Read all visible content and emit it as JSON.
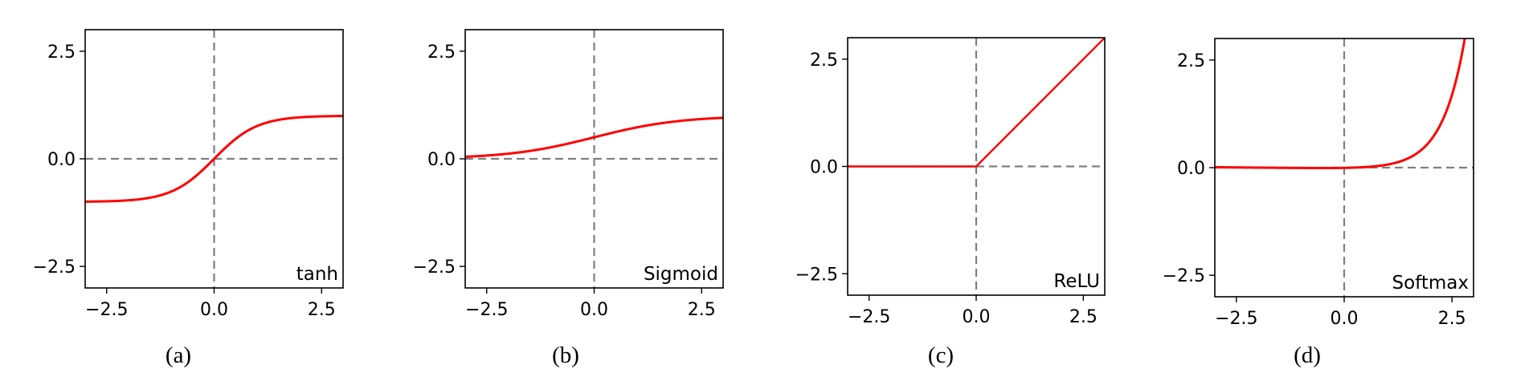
{
  "chart_data": [
    {
      "type": "line",
      "function": "tanh",
      "label": "tanh",
      "caption": "(a)",
      "xlim": [
        -3,
        3
      ],
      "ylim": [
        -3,
        3
      ],
      "xticks": [
        -2.5,
        0.0,
        2.5
      ],
      "xtick_labels": [
        "−2.5",
        "0.0",
        "2.5"
      ],
      "yticks": [
        -2.5,
        0.0,
        2.5
      ],
      "ytick_labels": [
        "−2.5",
        "0.0",
        "2.5"
      ],
      "series": [
        {
          "x": [
            -3,
            -2,
            -1,
            -0.5,
            0,
            0.5,
            1,
            2,
            3
          ],
          "y": [
            -0.995,
            -0.964,
            -0.762,
            -0.462,
            0,
            0.462,
            0.762,
            0.964,
            0.995
          ]
        }
      ],
      "grid": false,
      "reference_lines": {
        "x": 0,
        "y": 0
      }
    },
    {
      "type": "line",
      "function": "sigmoid",
      "label": "Sigmoid",
      "caption": "(b)",
      "xlim": [
        -3,
        3
      ],
      "ylim": [
        -3,
        3
      ],
      "xticks": [
        -2.5,
        0.0,
        2.5
      ],
      "xtick_labels": [
        "−2.5",
        "0.0",
        "2.5"
      ],
      "yticks": [
        -2.5,
        0.0,
        2.5
      ],
      "ytick_labels": [
        "−2.5",
        "0.0",
        "2.5"
      ],
      "series": [
        {
          "x": [
            -3,
            -2,
            -1,
            0,
            1,
            2,
            3
          ],
          "y": [
            0.05,
            0.12,
            0.27,
            0.5,
            0.73,
            0.88,
            0.95
          ]
        }
      ],
      "grid": false,
      "reference_lines": {
        "x": 0,
        "y": 0
      }
    },
    {
      "type": "line",
      "function": "relu",
      "label": "ReLU",
      "caption": "(c)",
      "xlim": [
        -3,
        3
      ],
      "ylim": [
        -3,
        3
      ],
      "xticks": [
        -2.5,
        0.0,
        2.5
      ],
      "xtick_labels": [
        "−2.5",
        "0.0",
        "2.5"
      ],
      "yticks": [
        -2.5,
        0.0,
        2.5
      ],
      "ytick_labels": [
        "−2.5",
        "0.0",
        "2.5"
      ],
      "series": [
        {
          "x": [
            -3,
            0,
            3
          ],
          "y": [
            0,
            0,
            3
          ]
        }
      ],
      "grid": false,
      "reference_lines": {
        "x": 0,
        "y": 0
      }
    },
    {
      "type": "line",
      "function": "softmax",
      "label": "Softmax",
      "caption": "(d)",
      "xlim": [
        -3,
        3
      ],
      "ylim": [
        -3,
        3
      ],
      "xticks": [
        -2.5,
        0.0,
        2.5
      ],
      "xtick_labels": [
        "−2.5",
        "0.0",
        "2.5"
      ],
      "yticks": [
        -2.5,
        0.0,
        2.5
      ],
      "ytick_labels": [
        "−2.5",
        "0.0",
        "2.5"
      ],
      "series": [
        {
          "x": [
            -3,
            -2,
            -1,
            0,
            1,
            1.5,
            2,
            2.3,
            2.5,
            2.7,
            2.8
          ],
          "y": [
            0.03,
            0.02,
            0.0,
            -0.02,
            0.02,
            0.08,
            0.25,
            0.55,
            0.95,
            1.9,
            2.65
          ]
        }
      ],
      "grid": false,
      "reference_lines": {
        "x": 0,
        "y": 0
      }
    }
  ],
  "colors": {
    "curve": "#ff0000",
    "reference_line": "#7f7f7f",
    "axes": "#000000"
  }
}
